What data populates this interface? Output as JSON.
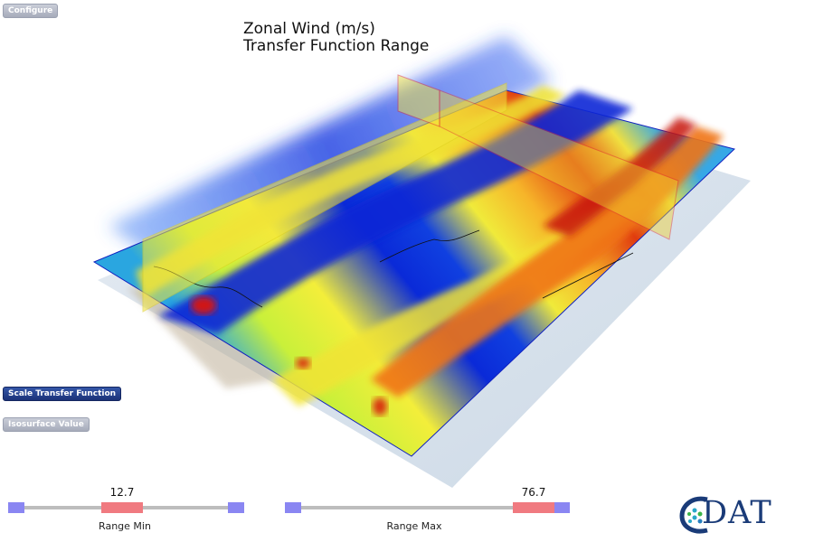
{
  "buttons": {
    "configure": "Configure",
    "scale_transfer_function": "Scale Transfer Function",
    "isosurface_value": "Isosurface Value"
  },
  "title": {
    "line1": "Zonal Wind (m/s)",
    "line2": "Transfer Function Range"
  },
  "sliders": {
    "range_min": {
      "label": "Range Min",
      "value": "12.7"
    },
    "range_max": {
      "label": "Range Max",
      "value": "76.7"
    }
  },
  "logo": {
    "text": "DAT"
  },
  "colors": {
    "button_grey": "#b3b8c6",
    "button_blue": "#23398a",
    "slider_handle": "#f07a80",
    "slider_endcap": "#8a86f2",
    "logo_blue": "#1a3b78"
  }
}
